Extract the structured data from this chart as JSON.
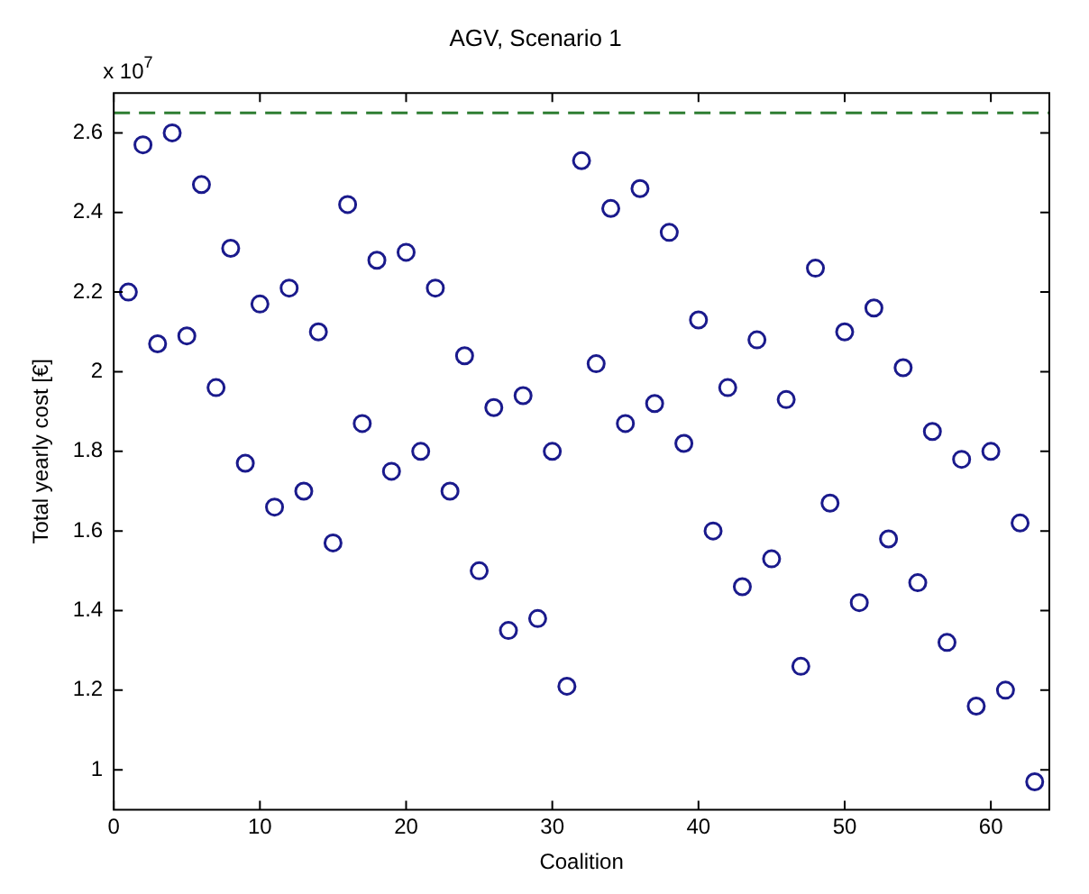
{
  "chart_data": {
    "type": "scatter",
    "title": "AGV, Scenario 1",
    "xlabel": "Coalition",
    "ylabel": "Total yearly cost [€]",
    "annotations": [
      "x 10$^{7}$"
    ],
    "x": [
      1,
      2,
      3,
      4,
      5,
      6,
      7,
      8,
      9,
      10,
      11,
      12,
      13,
      14,
      15,
      16,
      17,
      18,
      19,
      20,
      21,
      22,
      23,
      24,
      25,
      26,
      27,
      28,
      29,
      30,
      31,
      32,
      33,
      34,
      35,
      36,
      37,
      38,
      39,
      40,
      41,
      42,
      43,
      44,
      45,
      46,
      47,
      48,
      49,
      50,
      51,
      52,
      53,
      54,
      55,
      56,
      57,
      58,
      59,
      60,
      61,
      62,
      63
    ],
    "series": [
      {
        "color": "#1a1a8c",
        "values": [
          2.2,
          2.57,
          2.07,
          2.6,
          2.09,
          2.47,
          1.96,
          2.31,
          1.77,
          2.17,
          1.66,
          2.21,
          1.7,
          2.1,
          1.57,
          2.42,
          1.87,
          2.28,
          1.75,
          2.3,
          1.8,
          2.21,
          1.7,
          2.04,
          1.5,
          1.91,
          1.35,
          1.94,
          1.38,
          1.8,
          1.21,
          2.53,
          2.02,
          2.41,
          1.87,
          2.46,
          1.92,
          2.35,
          1.82,
          2.13,
          1.6,
          1.96,
          1.46,
          2.08,
          1.53,
          1.93,
          1.26,
          2.26,
          1.67,
          2.1,
          1.42,
          2.16,
          1.58,
          2.01,
          1.47,
          1.85,
          1.32,
          1.78,
          1.16,
          1.8,
          1.2,
          1.62,
          0.97
        ]
      }
    ],
    "xlim": [
      0,
      64
    ],
    "xticks": [
      0,
      10,
      20,
      30,
      40,
      50,
      60
    ],
    "ylim": [
      0.9,
      2.7
    ],
    "yticks": [
      1,
      1.2,
      1.4,
      1.6,
      1.8,
      2,
      2.2,
      2.4,
      2.6
    ],
    "ref_lines": [
      {
        "axis": "y",
        "value": 2.65,
        "color": "#2e7d32",
        "line_style": "dashed"
      }
    ],
    "marker": "circle",
    "grid": false,
    "legend": false
  }
}
